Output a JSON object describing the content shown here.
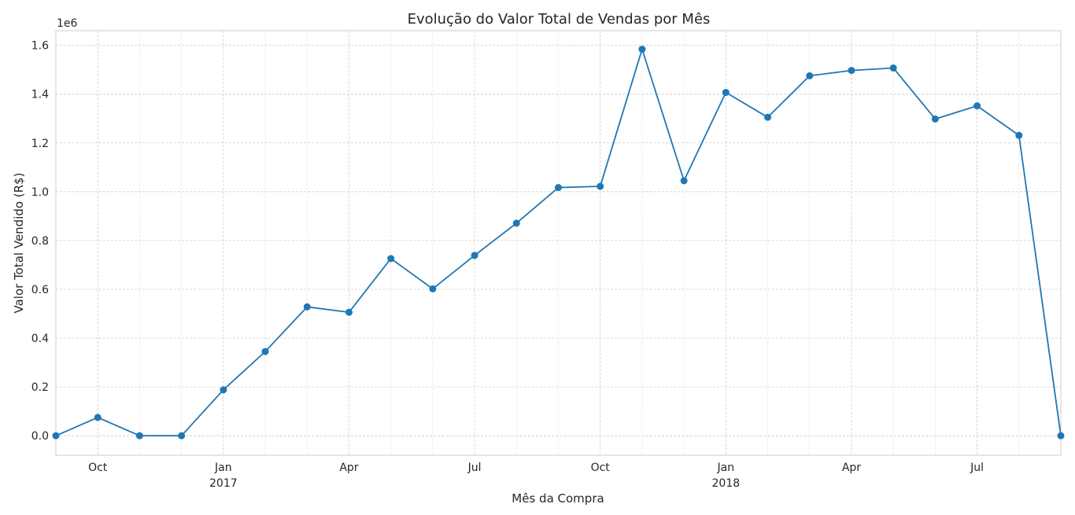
{
  "chart_data": {
    "type": "line",
    "title": "Evolução do Valor Total de Vendas por Mês",
    "xlabel": "Mês da Compra",
    "ylabel": "Valor Total Vendido (R$)",
    "y_offset_label": "1e6",
    "y_scale_factor": 1000000,
    "ylim": [
      -0.08,
      1.66
    ],
    "yticks": [
      0.0,
      0.2,
      0.4,
      0.6,
      0.8,
      1.0,
      1.2,
      1.4,
      1.6
    ],
    "ytick_labels": [
      "0.0",
      "0.2",
      "0.4",
      "0.6",
      "0.8",
      "1.0",
      "1.2",
      "1.4",
      "1.6"
    ],
    "x": [
      "2016-09",
      "2016-10",
      "2016-11",
      "2016-12",
      "2017-01",
      "2017-02",
      "2017-03",
      "2017-04",
      "2017-05",
      "2017-06",
      "2017-07",
      "2017-08",
      "2017-09",
      "2017-10",
      "2017-11",
      "2017-12",
      "2018-01",
      "2018-02",
      "2018-03",
      "2018-04",
      "2018-05",
      "2018-06",
      "2018-07",
      "2018-08",
      "2018-09"
    ],
    "x_major_ticks": [
      {
        "month": "2016-10",
        "label": "Oct",
        "sublabel": ""
      },
      {
        "month": "2017-01",
        "label": "Jan",
        "sublabel": "2017"
      },
      {
        "month": "2017-04",
        "label": "Apr",
        "sublabel": ""
      },
      {
        "month": "2017-07",
        "label": "Jul",
        "sublabel": ""
      },
      {
        "month": "2017-10",
        "label": "Oct",
        "sublabel": ""
      },
      {
        "month": "2018-01",
        "label": "Jan",
        "sublabel": "2018"
      },
      {
        "month": "2018-04",
        "label": "Apr",
        "sublabel": ""
      },
      {
        "month": "2018-07",
        "label": "Jul",
        "sublabel": ""
      }
    ],
    "series": [
      {
        "color": "#1f77b4",
        "marker": "circle",
        "values": [
          0.0,
          0.075,
          0.0,
          0.0,
          0.188,
          0.345,
          0.528,
          0.506,
          0.726,
          0.602,
          0.739,
          0.871,
          1.017,
          1.022,
          1.584,
          1.045,
          1.407,
          1.305,
          1.475,
          1.497,
          1.507,
          1.298,
          1.352,
          1.231,
          0.0
        ]
      }
    ],
    "grid": true,
    "legend": "none"
  }
}
